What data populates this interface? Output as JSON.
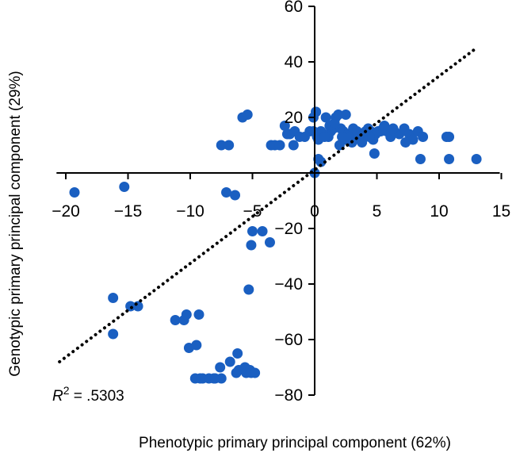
{
  "chart_data": {
    "type": "scatter",
    "xlabel": "Phenotypic primary principal component (62%)",
    "ylabel": "Genotypic primary principal component (29%)",
    "xlim": [
      -21,
      15
    ],
    "ylim": [
      -80,
      60
    ],
    "x_ticks": [
      -20,
      -15,
      -10,
      -5,
      0,
      5,
      10,
      15
    ],
    "y_ticks": [
      -80,
      -60,
      -40,
      -20,
      20,
      40,
      60
    ],
    "x_tick_labels": [
      "−20",
      "−15",
      "−10",
      "−5",
      "0",
      "5",
      "10",
      "15"
    ],
    "y_tick_labels": [
      "−80",
      "−60",
      "−40",
      "−20",
      "20",
      "40",
      "60"
    ],
    "axes_cross_at_origin": true,
    "grid": false,
    "legend": "none",
    "colors": {
      "points": "#1a5fc1",
      "axes": "#000000",
      "fit_line": "#000000"
    },
    "fit_line": {
      "style": "dotted",
      "x": [
        -20.5,
        13
      ],
      "y": [
        -68,
        45
      ]
    },
    "annotation": {
      "symbol": "R",
      "superscript": "2",
      "text": " = .5303"
    },
    "points": {
      "x": [
        -19.3,
        -15.3,
        -16.2,
        -16.2,
        -14.8,
        -14.2,
        -11.2,
        -10.5,
        -10.3,
        -10.1,
        -9.5,
        -9.3,
        -8.1,
        -9.2,
        -9,
        -9.6,
        -8.5,
        -8,
        -7.5,
        -7.6,
        -6.8,
        -6.3,
        -6.2,
        -6.1,
        -5.6,
        -5.5,
        -5.2,
        -5.1,
        -4.8,
        -5.3,
        -5.1,
        -5,
        -4.2,
        -3.6,
        -6.9,
        -6.4,
        -7.1,
        -7.5,
        -5.8,
        -5.4,
        -3.5,
        -3.2,
        -2.8,
        -2.4,
        -2.2,
        -2,
        -1.7,
        -1.6,
        -1.2,
        -0.8,
        -0.4,
        -0.1,
        0.1,
        0.2,
        0.3,
        0.5,
        0.7,
        0.9,
        1.1,
        1.3,
        1.5,
        1.7,
        1.9,
        2.1,
        2.3,
        2.5,
        2.7,
        2.9,
        3.1,
        3.3,
        3.5,
        3.7,
        3.9,
        4.1,
        4.3,
        4.5,
        4.7,
        4.9,
        5.1,
        5.3,
        5.5,
        5.8,
        6.1,
        6.4,
        6.8,
        7.2,
        7.6,
        7.9,
        8.3,
        8.7,
        10.6,
        10.8,
        13,
        10.8,
        8.5,
        4.8,
        0.3,
        0.5,
        0,
        2,
        2.5,
        3,
        1.2,
        0.8,
        2.2,
        3.8,
        4.4,
        5.6,
        6.3,
        7.3,
        1.6,
        2.9,
        3.4,
        0.1,
        -0.1
      ],
      "y": [
        -7,
        -5,
        -45,
        -58,
        -48,
        -48,
        -53,
        -53,
        -51,
        -63,
        -62,
        -51,
        -74,
        -74,
        -74,
        -74,
        -74,
        -74,
        -74,
        -70,
        -68,
        -72,
        -65,
        -71,
        -70,
        -72,
        -71,
        -72,
        -72,
        -42,
        -26,
        -21,
        -21,
        -25,
        10,
        -8,
        -7,
        10,
        20,
        21,
        10,
        10,
        10,
        17,
        14,
        14,
        10,
        15,
        13,
        13,
        15,
        15,
        22,
        13,
        12,
        15,
        14,
        20,
        13,
        15,
        16,
        20,
        21,
        16,
        15,
        21,
        14,
        12,
        16,
        13,
        14,
        12,
        14,
        15,
        16,
        15,
        12,
        14,
        15,
        15,
        16,
        15,
        13,
        15,
        14,
        16,
        14,
        12,
        15,
        13,
        13,
        13,
        5,
        5,
        5,
        7,
        5,
        4,
        0,
        10,
        12,
        11,
        17,
        13,
        13,
        11,
        13,
        17,
        16,
        11,
        18,
        13,
        15,
        22,
        20
      ]
    }
  }
}
